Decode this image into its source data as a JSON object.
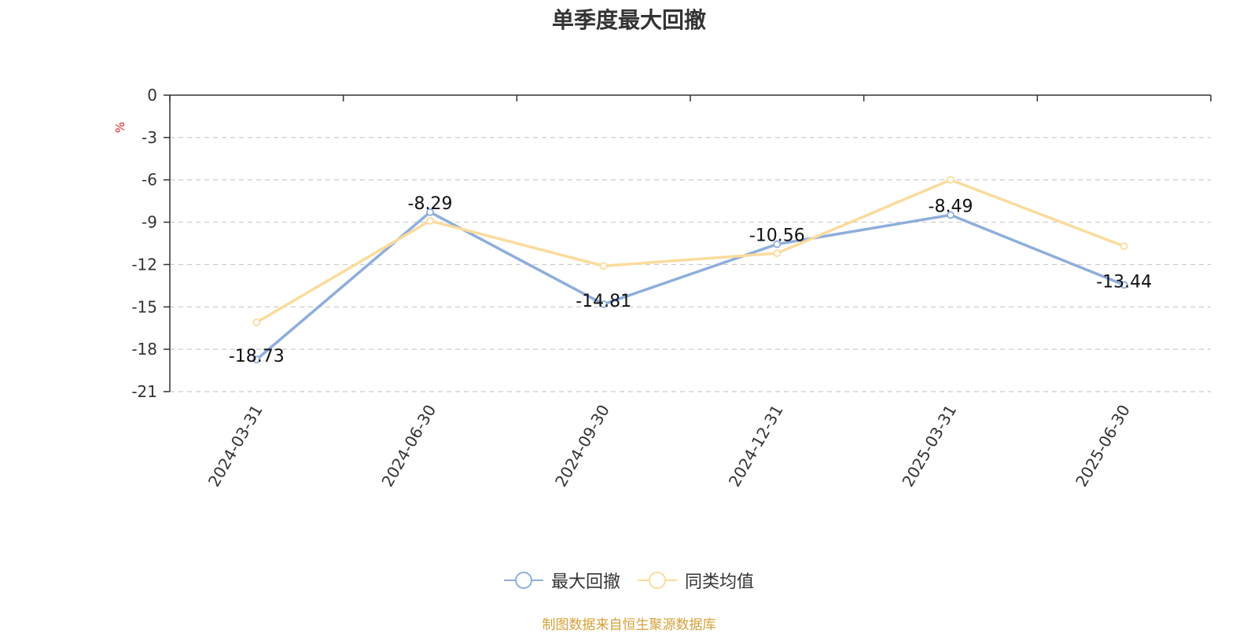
{
  "chart_data": {
    "type": "line",
    "title": "单季度最大回撤",
    "ylabel": "%",
    "ylim": [
      -21,
      0
    ],
    "yticks": [
      0,
      -3,
      -6,
      -9,
      -12,
      -15,
      -18,
      -21
    ],
    "categories": [
      "2024-03-31",
      "2024-06-30",
      "2024-09-30",
      "2024-12-31",
      "2025-03-31",
      "2025-06-30"
    ],
    "series": [
      {
        "name": "最大回撤",
        "values": [
          -18.73,
          -8.29,
          -14.81,
          -10.56,
          -8.49,
          -13.44
        ],
        "labels": [
          "-18.73",
          "-8.29",
          "-14.81",
          "-10.56",
          "-8.49",
          "-13.44"
        ],
        "color": "#8eaedb"
      },
      {
        "name": "同类均值",
        "values": [
          -16.1,
          -8.9,
          -12.1,
          -11.2,
          -6.0,
          -10.7
        ],
        "color": "#fbdb9c"
      }
    ],
    "grid": "horizontal-dashed",
    "legend": "bottom-center"
  },
  "footer": {
    "source": "制图数据来自恒生聚源数据库",
    "source_color": "#d4a13a"
  },
  "colors": {
    "axis": "#333333",
    "ylabel": "#e02020",
    "grid": "#cccccc"
  }
}
